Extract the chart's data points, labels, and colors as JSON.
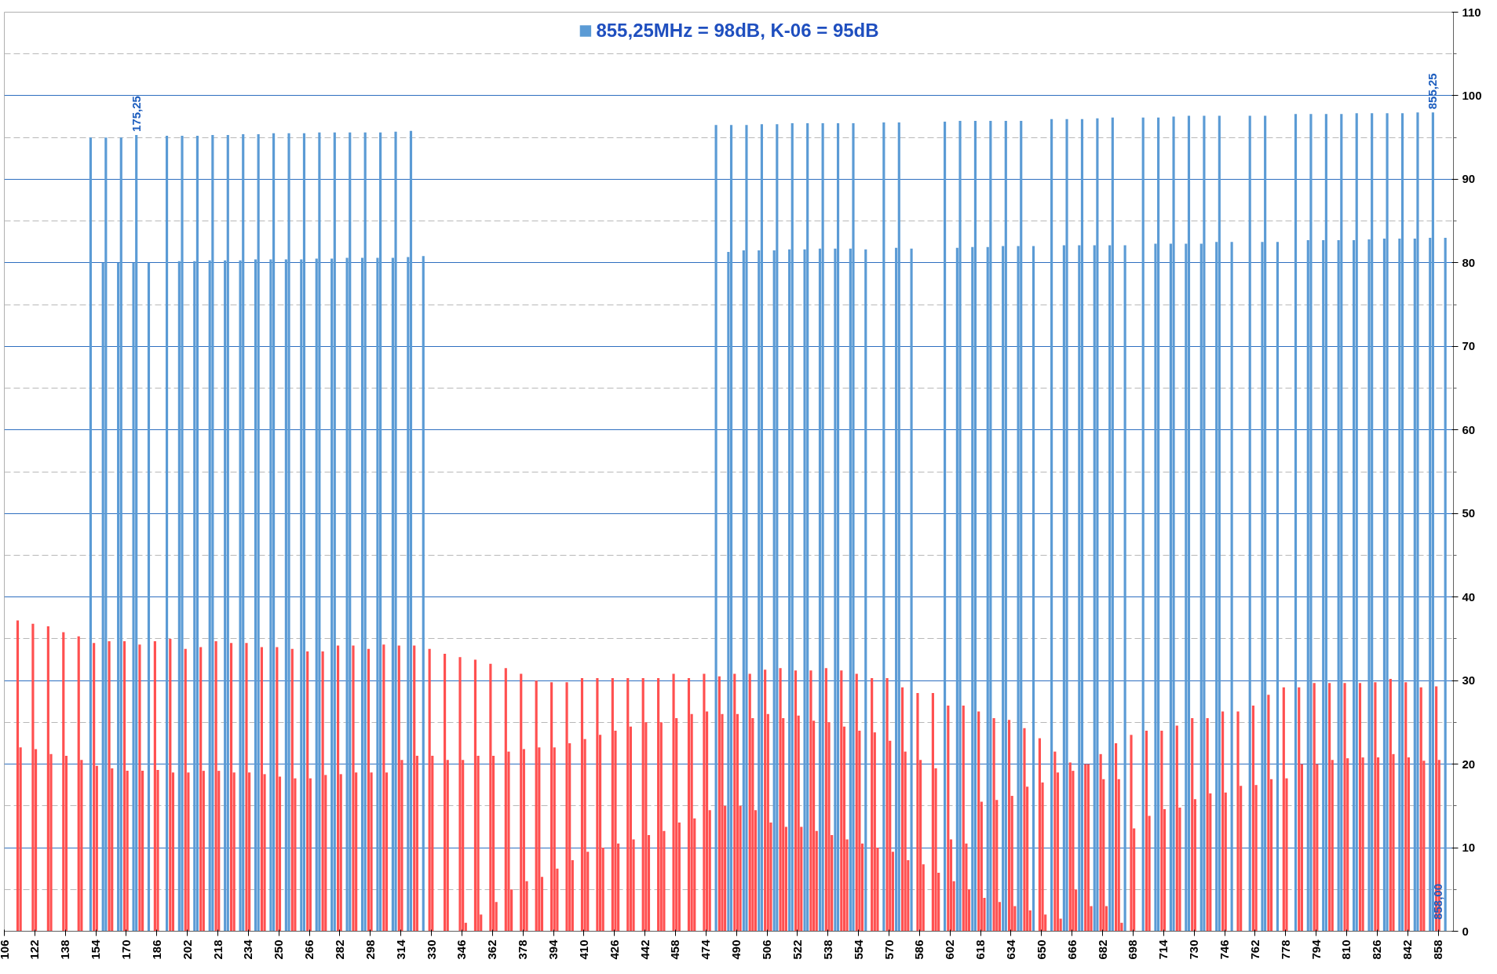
{
  "chart_data": {
    "type": "bar",
    "legend": "top",
    "grid": "y",
    "xlim": [
      106,
      866
    ],
    "ylim": [
      0,
      110
    ],
    "xticks": [
      106,
      122,
      138,
      154,
      170,
      186,
      202,
      218,
      234,
      250,
      266,
      282,
      298,
      314,
      330,
      346,
      362,
      378,
      394,
      410,
      426,
      442,
      458,
      474,
      490,
      506,
      522,
      538,
      554,
      570,
      586,
      602,
      618,
      634,
      650,
      666,
      682,
      698,
      714,
      730,
      746,
      762,
      778,
      794,
      810,
      826,
      842,
      858
    ],
    "yticks": [
      0,
      {
        "value": 5,
        "label": null
      },
      10,
      {
        "value": 15,
        "label": null
      },
      20,
      {
        "value": 25,
        "label": null
      },
      30,
      {
        "value": 35,
        "label": null
      },
      40,
      {
        "value": 45,
        "label": null
      },
      50,
      {
        "value": 55,
        "label": null
      },
      60,
      {
        "value": 65,
        "label": null
      },
      70,
      {
        "value": 75,
        "label": null
      },
      80,
      {
        "value": 85,
        "label": null
      },
      90,
      {
        "value": 95,
        "label": null
      },
      100,
      {
        "value": 105,
        "label": null
      },
      110
    ],
    "annotations": [
      {
        "text": "175,25",
        "x": 175.25,
        "y": 95.3
      },
      {
        "text": "855,25",
        "x": 855.25,
        "y": 98
      },
      {
        "text": "858,00",
        "x": 858,
        "y": 1
      }
    ],
    "series": [
      {
        "name": "855,25MHz = 98dB, K-06 = 95dB",
        "color": "#5b9bd5",
        "x": [
          151.25,
          159.25,
          167.25,
          175.25,
          191.25,
          199.25,
          207.25,
          215.25,
          223.25,
          231.25,
          239.25,
          247.25,
          255.25,
          263.25,
          271.25,
          279.25,
          287.25,
          295.25,
          303.25,
          311.25,
          319.25,
          479.25,
          487.25,
          495.25,
          503.25,
          511.25,
          519.25,
          527.25,
          535.25,
          543.25,
          551.25,
          567.25,
          575.25,
          599.25,
          607.25,
          615.25,
          623.25,
          631.25,
          639.25,
          655.25,
          663.25,
          671.25,
          679.25,
          687.25,
          703.25,
          711.25,
          719.25,
          727.25,
          735.25,
          743.25,
          759.25,
          767.25,
          783.25,
          791.25,
          799.25,
          807.25,
          815.25,
          823.25,
          831.25,
          839.25,
          847.25,
          855.25
        ],
        "values": [
          95.0,
          95.0,
          95.0,
          95.3,
          95.2,
          95.2,
          95.2,
          95.3,
          95.3,
          95.4,
          95.4,
          95.5,
          95.5,
          95.5,
          95.6,
          95.6,
          95.6,
          95.6,
          95.6,
          95.7,
          95.8,
          96.5,
          96.5,
          96.5,
          96.6,
          96.6,
          96.7,
          96.7,
          96.7,
          96.7,
          96.7,
          96.8,
          96.8,
          96.9,
          97,
          97,
          97,
          97,
          97,
          97.2,
          97.2,
          97.2,
          97.3,
          97.4,
          97.4,
          97.4,
          97.5,
          97.6,
          97.6,
          97.6,
          97.6,
          97.6,
          97.8,
          97.8,
          97.8,
          97.8,
          97.9,
          97.9,
          97.9,
          97.9,
          98,
          98
        ]
      },
      {
        "color": "#5b9bd5",
        "x": [
          157.75,
          165.75,
          173.75,
          181.75,
          197.75,
          205.75,
          213.75,
          221.75,
          229.75,
          237.75,
          245.75,
          253.75,
          261.75,
          269.75,
          277.75,
          285.75,
          293.75,
          301.75,
          309.75,
          317.75,
          325.75,
          485.75,
          493.75,
          501.75,
          509.75,
          517.75,
          525.75,
          533.75,
          541.75,
          549.75,
          557.75,
          573.75,
          581.75,
          605.75,
          613.75,
          621.75,
          629.75,
          637.75,
          645.75,
          661.75,
          669.75,
          677.75,
          685.75,
          693.75,
          709.75,
          717.75,
          725.75,
          733.75,
          741.75,
          749.75,
          765.75,
          773.75,
          789.75,
          797.75,
          805.75,
          813.75,
          821.75,
          829.75,
          837.75,
          845.75,
          853.75,
          861.75
        ],
        "values": [
          80,
          80,
          80,
          80,
          80.2,
          80.2,
          80.3,
          80.3,
          80.3,
          80.4,
          80.4,
          80.4,
          80.4,
          80.5,
          80.5,
          80.6,
          80.6,
          80.6,
          80.6,
          80.7,
          80.8,
          81.3,
          81.5,
          81.5,
          81.5,
          81.6,
          81.6,
          81.7,
          81.7,
          81.7,
          81.6,
          81.8,
          81.7,
          81.8,
          81.9,
          81.9,
          82,
          82,
          82,
          82.1,
          82.1,
          82.1,
          82.1,
          82.1,
          82.3,
          82.3,
          82.3,
          82.3,
          82.5,
          82.5,
          82.5,
          82.5,
          82.7,
          82.7,
          82.7,
          82.7,
          82.8,
          82.9,
          82.9,
          82.9,
          83,
          83
        ]
      },
      {
        "color": "#ff5050",
        "x": [
          113,
          121,
          129,
          137,
          145,
          153,
          161,
          169,
          177,
          185,
          193,
          201,
          209,
          217,
          225,
          233,
          241,
          249,
          257,
          265,
          273,
          281,
          289,
          297,
          305,
          313,
          321,
          329,
          337,
          345,
          353,
          361,
          369,
          377,
          385,
          393,
          401,
          409,
          417,
          425,
          433,
          441,
          449,
          457,
          465,
          473,
          481,
          489,
          497,
          505,
          513,
          521,
          529,
          537,
          545,
          553,
          561,
          569,
          577,
          585,
          593,
          601,
          609,
          617,
          625,
          633,
          641,
          649,
          657,
          665,
          673,
          681,
          689,
          697,
          705,
          713,
          721,
          729,
          737,
          745,
          753,
          761,
          769,
          777,
          785,
          793,
          801,
          809,
          817,
          825,
          833,
          841,
          849,
          857
        ],
        "values": [
          37.2,
          36.8,
          36.5,
          35.8,
          35.3,
          34.5,
          34.7,
          34.7,
          34.3,
          34.7,
          35,
          33.8,
          34,
          34.7,
          34.5,
          34.5,
          34,
          34,
          33.8,
          33.5,
          33.5,
          34.2,
          34.2,
          33.8,
          34.3,
          34.2,
          34.2,
          33.8,
          33.2,
          32.8,
          32.5,
          32,
          31.5,
          30.8,
          30,
          29.8,
          29.8,
          30.3,
          30.3,
          30.3,
          30.3,
          30.3,
          30.3,
          30.8,
          30.3,
          30.8,
          30.5,
          30.8,
          30.8,
          31.3,
          31.5,
          31.2,
          31.2,
          31.5,
          31.2,
          30.8,
          30.3,
          30.3,
          29.2,
          28.5,
          28.5,
          27,
          27,
          26.3,
          25.5,
          25.3,
          24.3,
          23.1,
          21.5,
          20.2,
          20,
          21.2,
          22.5,
          23.5,
          24,
          24,
          24.6,
          25.5,
          25.5,
          26.3,
          26.3,
          27,
          28.3,
          29.2,
          29.2,
          29.7,
          29.7,
          29.7,
          29.7,
          29.8,
          30.2,
          29.8,
          29.2,
          29.3
        ]
      },
      {
        "color": "#ff5050",
        "x": [
          114.5,
          122.5,
          130.5,
          138.5,
          146.5,
          154.5,
          162.5,
          170.5,
          178.5,
          186.5,
          194.5,
          202.5,
          210.5,
          218.5,
          226.5,
          234.5,
          242.5,
          250.5,
          258.5,
          266.5,
          274.5,
          282.5,
          290.5,
          298.5,
          306.5,
          314.5,
          322.5,
          330.5,
          338.5,
          346.5,
          354.5,
          362.5,
          370.5,
          378.5,
          386.5,
          394.5,
          402.5,
          410.5,
          418.5,
          426.5,
          434.5,
          442.5,
          450.5,
          458.5,
          466.5,
          474.5,
          482.5,
          490.5,
          498.5,
          506.5,
          514.5,
          522.5,
          530.5,
          538.5,
          546.5,
          554.5,
          562.5,
          570.5,
          578.5,
          586.5,
          594.5,
          602.5,
          610.5,
          618.5,
          626.5,
          634.5,
          642.5,
          650.5,
          658.5,
          666.5,
          674.5,
          682.5,
          690.5,
          698.5,
          706.5,
          714.5,
          722.5,
          730.5,
          738.5,
          746.5,
          754.5,
          762.5,
          770.5,
          778.5,
          786.5,
          794.5,
          802.5,
          810.5,
          818.5,
          826.5,
          834.5,
          842.5,
          850.5,
          858.5
        ],
        "values": [
          22,
          21.8,
          21.2,
          21,
          20.5,
          19.8,
          19.5,
          19.2,
          19.2,
          19.3,
          19,
          19,
          19.2,
          19.2,
          19,
          19,
          18.8,
          18.5,
          18.3,
          18.3,
          18.7,
          18.8,
          19,
          19,
          19,
          20.5,
          21,
          21,
          20.5,
          20.5,
          21,
          21,
          21.5,
          21.8,
          22,
          22,
          22.5,
          23,
          23.5,
          24,
          24.5,
          25,
          25,
          25.5,
          26,
          26.3,
          26,
          26,
          25.5,
          26,
          25.5,
          25.8,
          25.2,
          25,
          24.5,
          24,
          23.8,
          22.8,
          21.5,
          20.5,
          19.5,
          11,
          10.5,
          15.5,
          15.7,
          16.2,
          17.3,
          17.8,
          19,
          19.2,
          20,
          18.2,
          18.2,
          12.3,
          13.8,
          14.6,
          14.8,
          15.8,
          16.5,
          16.6,
          17.4,
          17.5,
          18.2,
          18.3,
          20,
          20,
          20.5,
          20.7,
          20.8,
          20.8,
          21.2,
          20.8,
          20.4,
          20.5
        ]
      },
      {
        "color": "#ff5050",
        "x": [
          348,
          356,
          364,
          372,
          380,
          388,
          396,
          404,
          412,
          420,
          428,
          436,
          444,
          452,
          460,
          468,
          476,
          484,
          492,
          500,
          508,
          516,
          524,
          532,
          540,
          548,
          556,
          564,
          572,
          580,
          588,
          596,
          604,
          612,
          620,
          628,
          636,
          644,
          652,
          660,
          668,
          676,
          684,
          692
        ],
        "values": [
          1,
          2,
          3.5,
          5,
          6,
          6.5,
          7.5,
          8.5,
          9.5,
          10,
          10.5,
          11,
          11.5,
          12,
          13,
          13.5,
          14.5,
          15,
          15,
          14.5,
          13,
          12.5,
          12.5,
          12,
          11.5,
          11,
          10.5,
          10,
          9.5,
          8.5,
          8,
          7,
          6,
          5,
          4,
          3.5,
          3,
          2.5,
          2,
          1.5,
          5,
          3,
          3,
          1
        ]
      }
    ]
  }
}
